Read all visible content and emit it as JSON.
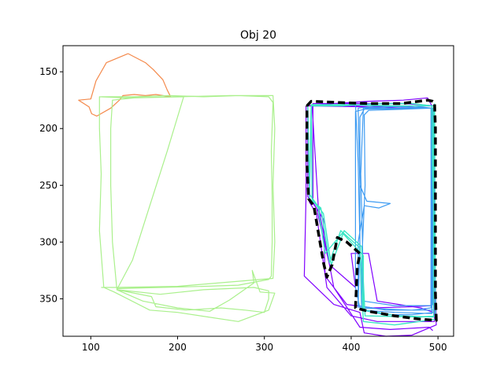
{
  "chart_data": {
    "type": "line",
    "title": "Obj 20",
    "xlabel": "",
    "ylabel": "",
    "xlim": [
      68,
      518
    ],
    "ylim": [
      383,
      127
    ],
    "y_inverted": true,
    "xticks": [
      100,
      200,
      300,
      400,
      500
    ],
    "yticks": [
      150,
      200,
      250,
      300,
      350
    ],
    "grid": false,
    "legend": "none",
    "series": [
      {
        "color": "#f4894b",
        "width": 1.2,
        "dash": "",
        "points": [
          [
            143,
            134
          ],
          [
            163,
            142
          ],
          [
            172,
            148
          ],
          [
            183,
            157
          ],
          [
            188,
            166
          ],
          [
            192,
            172
          ],
          [
            175,
            170
          ],
          [
            163,
            171
          ],
          [
            150,
            170
          ],
          [
            137,
            171
          ],
          [
            133,
            175
          ],
          [
            123,
            182
          ],
          [
            107,
            189
          ],
          [
            101,
            187
          ],
          [
            98,
            181
          ],
          [
            86,
            175
          ],
          [
            100,
            174
          ],
          [
            106,
            158
          ],
          [
            118,
            142
          ],
          [
            143,
            134
          ]
        ]
      },
      {
        "color": "#aaf08c",
        "width": 1.2,
        "dash": "",
        "points": [
          [
            112,
            172
          ],
          [
            150,
            172
          ],
          [
            190,
            171
          ],
          [
            230,
            172
          ],
          [
            270,
            171
          ],
          [
            305,
            172
          ],
          [
            310,
            177
          ],
          [
            308,
            220
          ],
          [
            309,
            260
          ],
          [
            309,
            300
          ],
          [
            308,
            330
          ],
          [
            305,
            333
          ],
          [
            270,
            338
          ],
          [
            230,
            339
          ],
          [
            180,
            340
          ],
          [
            130,
            341
          ],
          [
            125,
            300
          ],
          [
            123,
            250
          ],
          [
            123,
            200
          ],
          [
            125,
            175
          ],
          [
            150,
            173
          ],
          [
            207,
            172
          ],
          [
            188,
            220
          ],
          [
            168,
            268
          ],
          [
            148,
            316
          ],
          [
            130,
            342
          ],
          [
            180,
            346
          ],
          [
            230,
            342
          ],
          [
            288,
            340
          ],
          [
            305,
            343
          ],
          [
            305,
            350
          ],
          [
            300,
            362
          ],
          [
            278,
            360
          ],
          [
            250,
            358
          ],
          [
            210,
            360
          ],
          [
            175,
            357
          ],
          [
            170,
            348
          ],
          [
            130,
            342
          ],
          [
            160,
            352
          ],
          [
            200,
            358
          ],
          [
            237,
            361
          ],
          [
            260,
            351
          ],
          [
            288,
            336
          ],
          [
            286,
            325
          ],
          [
            295,
            344
          ],
          [
            312,
            345
          ],
          [
            305,
            360
          ],
          [
            270,
            370
          ],
          [
            200,
            362
          ],
          [
            168,
            360
          ],
          [
            127,
            344
          ],
          [
            115,
            340
          ],
          [
            110,
            290
          ],
          [
            112,
            240
          ],
          [
            110,
            200
          ],
          [
            110,
            172
          ],
          [
            140,
            173
          ],
          [
            200,
            172
          ],
          [
            260,
            171
          ],
          [
            310,
            171
          ],
          [
            312,
            200
          ],
          [
            310,
            250
          ],
          [
            312,
            300
          ],
          [
            310,
            332
          ],
          [
            200,
            339
          ],
          [
            128,
            340
          ],
          [
            112,
            340
          ]
        ]
      },
      {
        "color": "#8000ff",
        "width": 1.2,
        "dash": "",
        "points": [
          [
            348,
            180
          ],
          [
            348,
            260
          ],
          [
            346,
            330
          ],
          [
            380,
            355
          ],
          [
            410,
            362
          ],
          [
            415,
            380
          ],
          [
            440,
            383
          ],
          [
            470,
            382
          ],
          [
            498,
            373
          ],
          [
            496,
            300
          ],
          [
            495,
            250
          ],
          [
            493,
            180
          ],
          [
            488,
            173
          ],
          [
            460,
            175
          ],
          [
            420,
            176
          ],
          [
            380,
            178
          ],
          [
            350,
            180
          ],
          [
            350,
            260
          ],
          [
            360,
            270
          ],
          [
            375,
            320
          ],
          [
            405,
            340
          ],
          [
            400,
            310
          ],
          [
            420,
            310
          ],
          [
            430,
            352
          ],
          [
            480,
            358
          ],
          [
            495,
            362
          ],
          [
            493,
            180
          ],
          [
            420,
            181
          ],
          [
            350,
            180
          ],
          [
            352,
            265
          ],
          [
            360,
            275
          ],
          [
            372,
            340
          ],
          [
            400,
            365
          ],
          [
            430,
            370
          ],
          [
            480,
            370
          ],
          [
            496,
            370
          ],
          [
            496,
            180
          ],
          [
            460,
            178
          ],
          [
            410,
            178
          ],
          [
            356,
            178
          ],
          [
            356,
            265
          ],
          [
            368,
            280
          ],
          [
            370,
            330
          ],
          [
            395,
            355
          ],
          [
            425,
            358
          ],
          [
            470,
            357
          ],
          [
            492,
            356
          ],
          [
            493,
            182
          ],
          [
            462,
            182
          ],
          [
            430,
            181
          ],
          [
            400,
            180
          ],
          [
            361,
            180
          ],
          [
            355,
            180
          ],
          [
            362,
            268
          ],
          [
            380,
            340
          ],
          [
            410,
            375
          ],
          [
            445,
            377
          ],
          [
            490,
            375
          ],
          [
            494,
            378
          ]
        ]
      },
      {
        "color": "#3d9bf2",
        "width": 1.2,
        "dash": "",
        "points": [
          [
            405,
            178
          ],
          [
            408,
            230
          ],
          [
            410,
            300
          ],
          [
            412,
            360
          ],
          [
            440,
            364
          ],
          [
            470,
            364
          ],
          [
            495,
            362
          ],
          [
            494,
            300
          ],
          [
            493,
            240
          ],
          [
            492,
            182
          ],
          [
            470,
            180
          ],
          [
            440,
            181
          ],
          [
            414,
            182
          ],
          [
            411,
            240
          ],
          [
            413,
            300
          ],
          [
            414,
            352
          ],
          [
            450,
            356
          ],
          [
            492,
            356
          ],
          [
            494,
            355
          ],
          [
            493,
            182
          ],
          [
            460,
            183
          ],
          [
            420,
            184
          ],
          [
            415,
            188
          ],
          [
            416,
            250
          ],
          [
            412,
            320
          ],
          [
            414,
            360
          ],
          [
            450,
            362
          ],
          [
            493,
            363
          ],
          [
            493,
            182
          ],
          [
            430,
            180
          ],
          [
            408,
            182
          ],
          [
            410,
            250
          ],
          [
            418,
            264
          ],
          [
            445,
            266
          ],
          [
            432,
            270
          ],
          [
            415,
            268
          ],
          [
            408,
            300
          ],
          [
            408,
            356
          ],
          [
            440,
            360
          ],
          [
            495,
            360
          ],
          [
            494,
            182
          ],
          [
            420,
            182
          ],
          [
            405,
            185
          ],
          [
            405,
            340
          ],
          [
            410,
            358
          ],
          [
            470,
            360
          ],
          [
            492,
            358
          ],
          [
            492,
            182
          ],
          [
            415,
            183
          ],
          [
            410,
            190
          ],
          [
            410,
            300
          ],
          [
            408,
            358
          ]
        ]
      },
      {
        "color": "#3ce6c6",
        "width": 1.4,
        "dash": "",
        "points": [
          [
            350,
            178
          ],
          [
            352,
            262
          ],
          [
            365,
            270
          ],
          [
            375,
            318
          ],
          [
            388,
            290
          ],
          [
            410,
            305
          ],
          [
            414,
            370
          ],
          [
            450,
            373
          ],
          [
            497,
            368
          ],
          [
            496,
            300
          ],
          [
            494,
            240
          ],
          [
            493,
            180
          ],
          [
            470,
            178
          ],
          [
            430,
            178
          ],
          [
            390,
            180
          ],
          [
            354,
            180
          ],
          [
            355,
            262
          ],
          [
            362,
            270
          ],
          [
            370,
            310
          ],
          [
            390,
            292
          ],
          [
            414,
            312
          ],
          [
            414,
            360
          ],
          [
            455,
            365
          ],
          [
            495,
            366
          ],
          [
            495,
            180
          ],
          [
            450,
            180
          ],
          [
            400,
            179
          ],
          [
            354,
            179
          ],
          [
            352,
            258
          ],
          [
            368,
            275
          ],
          [
            377,
            320
          ],
          [
            392,
            290
          ],
          [
            412,
            304
          ],
          [
            416,
            365
          ],
          [
            480,
            366
          ],
          [
            497,
            365
          ],
          [
            496,
            178
          ]
        ]
      },
      {
        "color": "#000000",
        "width": 3.5,
        "dash": "9,5",
        "points": [
          [
            349,
            180
          ],
          [
            354,
            176
          ],
          [
            384,
            177
          ],
          [
            420,
            178
          ],
          [
            458,
            178
          ],
          [
            488,
            175
          ],
          [
            494,
            176
          ],
          [
            496,
            177
          ],
          [
            497,
            200
          ],
          [
            497,
            250
          ],
          [
            497,
            300
          ],
          [
            497,
            345
          ],
          [
            498,
            369
          ],
          [
            480,
            368
          ],
          [
            450,
            365
          ],
          [
            420,
            361
          ],
          [
            405,
            358
          ],
          [
            407,
            322
          ],
          [
            410,
            310
          ],
          [
            395,
            300
          ],
          [
            384,
            296
          ],
          [
            378,
            320
          ],
          [
            372,
            331
          ],
          [
            368,
            318
          ],
          [
            357,
            268
          ],
          [
            351,
            262
          ],
          [
            349,
            230
          ],
          [
            349,
            180
          ]
        ]
      }
    ]
  }
}
